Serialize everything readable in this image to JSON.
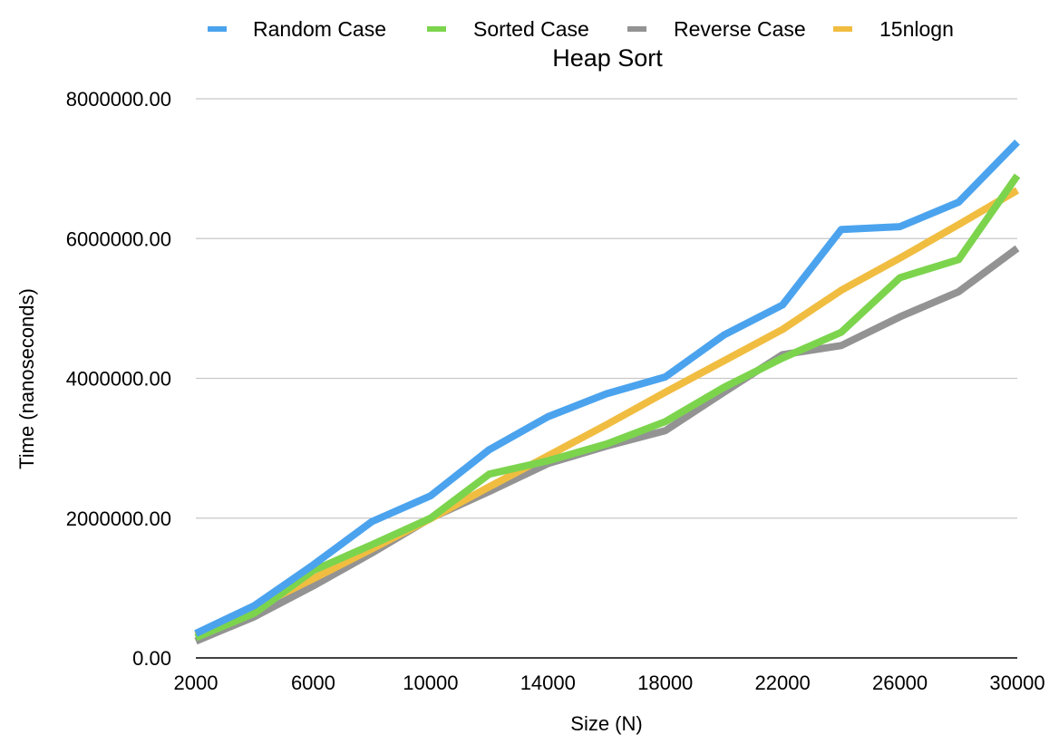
{
  "chart_data": {
    "type": "line",
    "title": "Heap Sort",
    "xlabel": "Size (N)",
    "ylabel": "Time (nanoseconds)",
    "x": [
      2000,
      4000,
      6000,
      8000,
      10000,
      12000,
      14000,
      16000,
      18000,
      20000,
      22000,
      24000,
      26000,
      28000,
      30000
    ],
    "x_tick_labels": [
      "2000",
      "6000",
      "10000",
      "14000",
      "18000",
      "22000",
      "26000",
      "30000"
    ],
    "y_tick_labels": [
      "0.00",
      "2000000.00",
      "4000000.00",
      "6000000.00",
      "8000000.00"
    ],
    "ylim": [
      0,
      8000000
    ],
    "xlim": [
      2000,
      30000
    ],
    "grid": true,
    "legend_position": "top",
    "series": [
      {
        "name": "Random Case",
        "color": "#4ba3ee",
        "values": [
          350000,
          750000,
          1330000,
          1950000,
          2320000,
          2980000,
          3450000,
          3780000,
          4020000,
          4620000,
          5050000,
          6130000,
          6170000,
          6520000,
          7380000
        ]
      },
      {
        "name": "Sorted Case",
        "color": "#7cd44d",
        "values": [
          290000,
          640000,
          1250000,
          1620000,
          2000000,
          2630000,
          2820000,
          3060000,
          3380000,
          3870000,
          4290000,
          4660000,
          5440000,
          5700000,
          6900000
        ]
      },
      {
        "name": "Reverse Case",
        "color": "#939393",
        "values": [
          240000,
          590000,
          1030000,
          1500000,
          2000000,
          2380000,
          2780000,
          3030000,
          3250000,
          3800000,
          4340000,
          4470000,
          4880000,
          5240000,
          5860000
        ]
      },
      {
        "name": "15nlogn",
        "color": "#f0bd41",
        "values": [
          328800,
          716600,
          1132000,
          1560000,
          1993200,
          2447400,
          2890000,
          3338000,
          3800000,
          4250000,
          4700000,
          5260000,
          5720000,
          6200000,
          6690000
        ]
      }
    ]
  }
}
